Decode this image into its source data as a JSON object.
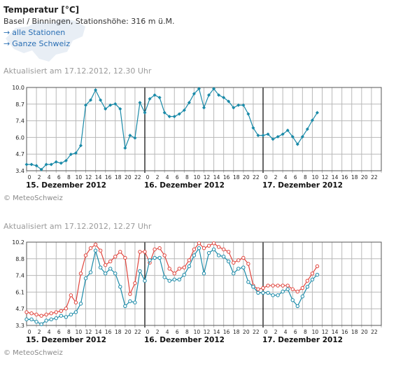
{
  "header": {
    "title": "Temperatur [°C]",
    "subtitle": "Basel / Binningen, Stationshöhe: 316 m ü.M.",
    "links": [
      {
        "arrow": "→",
        "label": "alle Stationen"
      },
      {
        "arrow": "→",
        "label": "Ganze Schweiz"
      }
    ]
  },
  "footer": {
    "copyright": "© MeteoSchweiz"
  },
  "colors": {
    "series_blue": "#1a8aa8",
    "series_red": "#e0443c",
    "grid": "#b8b8b8",
    "link": "#2a6fb4"
  },
  "chart_data": [
    {
      "type": "line",
      "updated": "Aktualisiert am 17.12.2012, 12.30 Uhr",
      "y_ticks": [
        "10.0",
        "8.7",
        "7.4",
        "6.0",
        "4.7",
        "3.4"
      ],
      "ylim": [
        3.4,
        10.0
      ],
      "hour_labels": [
        "0",
        "2",
        "4",
        "6",
        "8",
        "10",
        "12",
        "14",
        "16",
        "18",
        "20",
        "22",
        "0",
        "2",
        "4",
        "6",
        "8",
        "10",
        "12",
        "14",
        "16",
        "18",
        "20",
        "22",
        "0",
        "2",
        "4",
        "6",
        "8",
        "10",
        "12",
        "14",
        "16",
        "18",
        "20",
        "22"
      ],
      "day_labels": [
        "15. Dezember 2012",
        "16. Dezember 2012",
        "17. Dezember 2012"
      ],
      "series": [
        {
          "color": "#1a8aa8",
          "values": [
            3.9,
            3.9,
            3.8,
            3.5,
            3.9,
            3.9,
            4.1,
            4.0,
            4.2,
            4.7,
            4.8,
            5.4,
            8.6,
            9.0,
            9.8,
            9.0,
            8.3,
            8.6,
            8.7,
            8.3,
            5.2,
            6.2,
            6.0,
            8.8,
            8.0,
            9.1,
            9.4,
            9.2,
            8.0,
            7.7,
            7.7,
            7.9,
            8.2,
            8.8,
            9.5,
            9.9,
            8.4,
            9.4,
            9.9,
            9.4,
            9.2,
            8.9,
            8.4,
            8.6,
            8.6,
            7.9,
            6.8,
            6.2,
            6.2,
            6.3,
            5.9,
            6.1,
            6.3,
            6.6,
            6.1,
            5.5,
            6.1,
            6.7,
            7.4,
            8.0
          ]
        }
      ]
    },
    {
      "type": "line",
      "updated": "Aktualisiert am 17.12.2012, 12.27 Uhr",
      "y_ticks": [
        "10.2",
        "8.8",
        "7.4",
        "6.1",
        "4.7",
        "3.3"
      ],
      "ylim": [
        3.3,
        10.2
      ],
      "hour_labels": [
        "0",
        "2",
        "4",
        "6",
        "8",
        "10",
        "12",
        "14",
        "16",
        "18",
        "20",
        "22",
        "0",
        "2",
        "4",
        "6",
        "8",
        "10",
        "12",
        "14",
        "16",
        "18",
        "20",
        "22",
        "0",
        "2",
        "4",
        "6",
        "8",
        "10",
        "12",
        "14",
        "16",
        "18",
        "20",
        "22"
      ],
      "day_labels": [
        "15. Dezember 2012",
        "16. Dezember 2012",
        "17. Dezember 2012"
      ],
      "series": [
        {
          "color": "#e0443c",
          "values": [
            4.4,
            4.3,
            4.2,
            4.1,
            4.2,
            4.3,
            4.4,
            4.5,
            4.7,
            5.8,
            5.2,
            7.6,
            9.1,
            9.7,
            10.0,
            9.5,
            8.3,
            8.6,
            9.0,
            9.4,
            8.9,
            5.9,
            6.8,
            9.4,
            9.4,
            8.5,
            9.6,
            9.7,
            9.1,
            8.0,
            7.6,
            8.0,
            8.1,
            8.7,
            9.6,
            10.1,
            9.7,
            9.9,
            10.1,
            9.8,
            9.6,
            9.4,
            8.5,
            8.7,
            8.9,
            8.4,
            6.6,
            6.3,
            6.4,
            6.6,
            6.6,
            6.6,
            6.6,
            6.6,
            6.3,
            6.1,
            6.4,
            7.0,
            7.6,
            8.2
          ]
        },
        {
          "color": "#1a8aa8",
          "values": [
            3.8,
            3.8,
            3.6,
            3.4,
            3.7,
            3.8,
            3.9,
            4.1,
            4.0,
            4.2,
            4.4,
            5.1,
            7.2,
            7.7,
            9.5,
            8.1,
            7.6,
            8.0,
            7.6,
            6.5,
            4.9,
            5.3,
            5.2,
            7.8,
            7.0,
            8.7,
            8.9,
            8.9,
            7.3,
            7.0,
            7.1,
            7.1,
            7.5,
            8.2,
            9.1,
            9.7,
            7.6,
            9.3,
            9.6,
            9.1,
            9.0,
            8.6,
            7.6,
            8.0,
            8.1,
            6.9,
            6.5,
            6.0,
            6.0,
            6.0,
            5.8,
            5.8,
            6.1,
            6.3,
            5.4,
            4.9,
            5.7,
            6.5,
            7.1,
            7.5
          ]
        }
      ]
    }
  ]
}
